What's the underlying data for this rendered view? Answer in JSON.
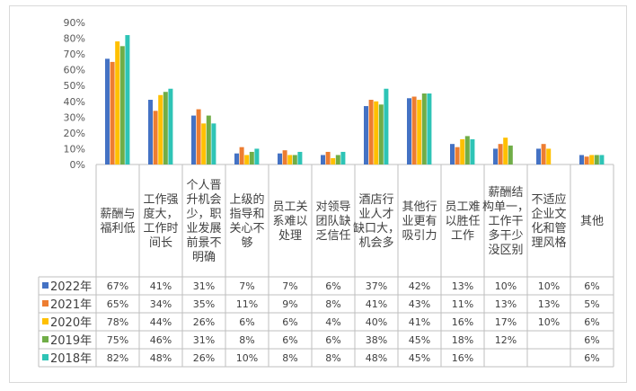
{
  "chart_data": {
    "type": "bar",
    "categories": [
      "薪酬与\n福利低",
      "工作强\n度大，\n工作时\n间长",
      "个人晋\n升机会\n少，职\n业发展\n前景不\n明确",
      "上级的\n指导和\n关心不\n够",
      "员工关\n系难以\n处理",
      "对领导\n团队缺\n乏信任",
      "酒店行\n业人才\n缺口大，\n机会多",
      "其他行\n业更有\n吸引力",
      "员工难\n以胜任\n工作",
      "薪酬结\n构单一，\n工作干\n多干少\n没区别",
      "不适应\n企业文\n化和管\n理风格",
      "其他"
    ],
    "series": [
      {
        "name": "2022年",
        "values": [
          67,
          41,
          31,
          7,
          7,
          6,
          37,
          42,
          13,
          10,
          10,
          6
        ]
      },
      {
        "name": "2021年",
        "values": [
          65,
          34,
          35,
          11,
          9,
          8,
          41,
          43,
          11,
          13,
          13,
          5
        ]
      },
      {
        "name": "2020年",
        "values": [
          78,
          44,
          26,
          6,
          6,
          4,
          40,
          41,
          16,
          17,
          10,
          6
        ]
      },
      {
        "name": "2019年",
        "values": [
          75,
          46,
          31,
          8,
          6,
          6,
          38,
          45,
          18,
          12,
          null,
          6
        ]
      },
      {
        "name": "2018年",
        "values": [
          82,
          48,
          26,
          10,
          8,
          8,
          48,
          45,
          16,
          null,
          null,
          6
        ]
      }
    ],
    "colors": [
      "#4472c4",
      "#ed7d31",
      "#ffc000",
      "#70ad47",
      "#2ec4b6"
    ],
    "ylim": [
      0,
      90
    ],
    "ytick_step": 10,
    "value_suffix": "%",
    "grid": false,
    "legend": "data-table"
  }
}
